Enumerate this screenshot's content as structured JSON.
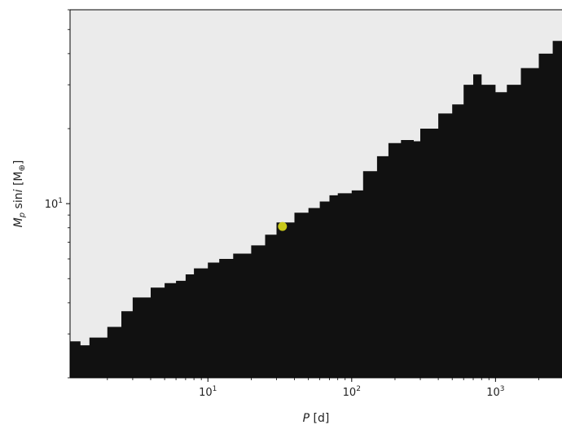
{
  "chart_data": {
    "type": "area",
    "xlabel": "P [d]",
    "ylabel": "M_p sin i [M⊕]",
    "x_scale": "log",
    "y_scale": "log",
    "xlim": [
      1.1,
      2900
    ],
    "ylim": [
      2.0,
      60
    ],
    "x_ticks": [
      {
        "value": 10,
        "base": "10",
        "exp": "1"
      },
      {
        "value": 100,
        "base": "10",
        "exp": "2"
      },
      {
        "value": 1000,
        "base": "10",
        "exp": "3"
      }
    ],
    "y_ticks": [
      {
        "value": 10,
        "base": "10",
        "exp": "1"
      }
    ],
    "grid": false,
    "colors": {
      "detectable_region": "#111111",
      "background": "#ebebeb",
      "planet_marker": "#c8c81a"
    },
    "detection_limit": {
      "name": "",
      "x": [
        1.1,
        1.3,
        1.5,
        2.0,
        2.5,
        3.0,
        4.0,
        5.0,
        6.0,
        7.0,
        8.0,
        10.0,
        12.0,
        15.0,
        20.0,
        25.0,
        30.0,
        40.0,
        50.0,
        60.0,
        70.0,
        80.0,
        100.0,
        120.0,
        150.0,
        180.0,
        220.0,
        270.0,
        300.0,
        400.0,
        500.0,
        600.0,
        700.0,
        800.0,
        1000.0,
        1200.0,
        1500.0,
        2000.0,
        2500.0,
        2900.0
      ],
      "y": [
        2.8,
        2.7,
        2.9,
        3.2,
        3.7,
        4.2,
        4.6,
        4.8,
        4.9,
        5.2,
        5.5,
        5.8,
        6.0,
        6.3,
        6.8,
        7.5,
        8.4,
        9.2,
        9.6,
        10.2,
        10.8,
        11.0,
        11.3,
        13.5,
        15.5,
        17.5,
        18.0,
        17.8,
        20.0,
        23.0,
        25.0,
        30.0,
        33.0,
        30.0,
        28.0,
        30.0,
        35.0,
        40.0,
        45.0,
        48.0
      ]
    },
    "planet": {
      "name": "",
      "x": 33.0,
      "y": 8.1
    }
  }
}
